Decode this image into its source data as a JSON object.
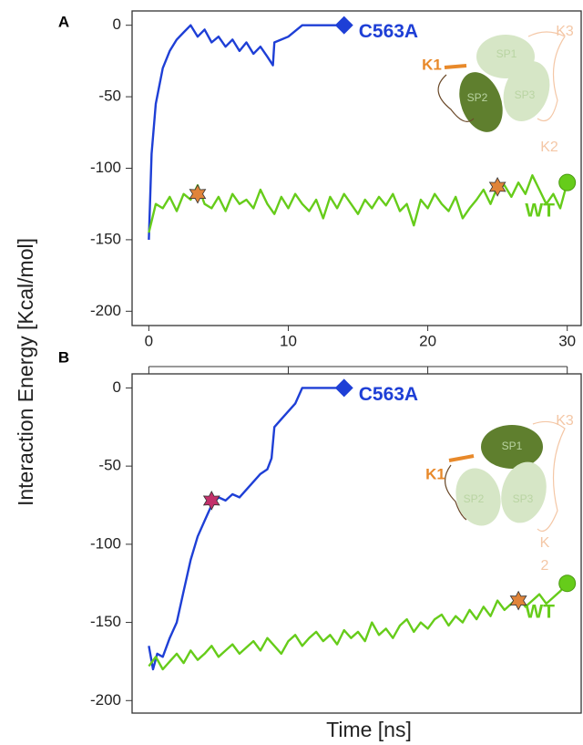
{
  "chart_data": [
    {
      "type": "line",
      "panel": "A",
      "ylabel": "Interaction Energy [Kcal/mol]",
      "xlim": [
        -1.2,
        31
      ],
      "xticks": [
        0,
        10,
        20,
        30
      ],
      "ylim": [
        -210,
        10
      ],
      "yticks": [
        -200,
        -150,
        -100,
        -50,
        0
      ],
      "series": [
        {
          "name": "C563A",
          "color": "#1e3fd6",
          "marker": "diamond",
          "x": [
            0,
            0.2,
            0.5,
            1,
            1.5,
            2,
            2.5,
            3,
            3.5,
            4,
            4.5,
            5,
            5.5,
            6,
            6.5,
            7,
            7.5,
            8,
            8.5,
            8.9,
            9,
            9.5,
            10,
            11,
            12,
            13,
            14
          ],
          "values": [
            -150,
            -90,
            -55,
            -30,
            -18,
            -10,
            -5,
            0,
            -8,
            -3,
            -12,
            -8,
            -15,
            -10,
            -18,
            -12,
            -20,
            -15,
            -22,
            -28,
            -12,
            -10,
            -8,
            0,
            0,
            0,
            0
          ]
        },
        {
          "name": "WT",
          "color": "#66cc1a",
          "marker": "circle",
          "x": [
            0,
            0.5,
            1,
            1.5,
            2,
            2.5,
            3,
            3.5,
            4,
            4.5,
            5,
            5.5,
            6,
            6.5,
            7,
            7.5,
            8,
            8.5,
            9,
            9.5,
            10,
            10.5,
            11,
            11.5,
            12,
            12.5,
            13,
            13.5,
            14,
            14.5,
            15,
            15.5,
            16,
            16.5,
            17,
            17.5,
            18,
            18.5,
            19,
            19.5,
            20,
            20.5,
            21,
            21.5,
            22,
            22.5,
            23,
            23.5,
            24,
            24.5,
            25,
            25.5,
            26,
            26.5,
            27,
            27.5,
            28,
            28.5,
            29,
            29.5,
            30
          ],
          "values": [
            -145,
            -125,
            -128,
            -120,
            -130,
            -118,
            -122,
            -112,
            -125,
            -128,
            -120,
            -130,
            -118,
            -125,
            -122,
            -128,
            -115,
            -125,
            -132,
            -120,
            -128,
            -118,
            -125,
            -130,
            -122,
            -135,
            -120,
            -128,
            -118,
            -125,
            -132,
            -122,
            -128,
            -120,
            -126,
            -118,
            -130,
            -125,
            -140,
            -122,
            -128,
            -118,
            -125,
            -130,
            -120,
            -135,
            -128,
            -122,
            -115,
            -125,
            -113,
            -112,
            -120,
            -110,
            -118,
            -105,
            -115,
            -125,
            -118,
            -128,
            -110
          ]
        }
      ],
      "stars": [
        {
          "x": 3.5,
          "y": -118,
          "color": "#e0843a"
        },
        {
          "x": 25,
          "y": -113,
          "color": "#e0843a"
        }
      ],
      "inset_labels": [
        "SP1",
        "SP2",
        "SP3",
        "K1",
        "K2",
        "K3"
      ]
    },
    {
      "type": "line",
      "panel": "B",
      "xlabel": "Time [ns]",
      "xlim": [
        -1.2,
        31
      ],
      "xticks": [
        0,
        10,
        20,
        30
      ],
      "ylim": [
        -208,
        9
      ],
      "yticks": [
        -200,
        -150,
        -100,
        -50,
        0
      ],
      "series": [
        {
          "name": "C563A",
          "color": "#1e3fd6",
          "marker": "diamond",
          "x": [
            0,
            0.3,
            0.6,
            1,
            1.5,
            2,
            2.5,
            3,
            3.5,
            4,
            4.5,
            5,
            5.5,
            6,
            6.5,
            7,
            7.5,
            8,
            8.5,
            8.8,
            9,
            9.5,
            10,
            10.5,
            11,
            12,
            13,
            14
          ],
          "values": [
            -165,
            -180,
            -170,
            -172,
            -160,
            -150,
            -130,
            -110,
            -95,
            -85,
            -75,
            -70,
            -72,
            -68,
            -70,
            -65,
            -60,
            -55,
            -52,
            -45,
            -25,
            -20,
            -15,
            -10,
            0,
            0,
            0,
            0
          ]
        },
        {
          "name": "WT",
          "color": "#66cc1a",
          "marker": "circle",
          "x": [
            0,
            0.5,
            1,
            1.5,
            2,
            2.5,
            3,
            3.5,
            4,
            4.5,
            5,
            5.5,
            6,
            6.5,
            7,
            7.5,
            8,
            8.5,
            9,
            9.5,
            10,
            10.5,
            11,
            11.5,
            12,
            12.5,
            13,
            13.5,
            14,
            14.5,
            15,
            15.5,
            16,
            16.5,
            17,
            17.5,
            18,
            18.5,
            19,
            19.5,
            20,
            20.5,
            21,
            21.5,
            22,
            22.5,
            23,
            23.5,
            24,
            24.5,
            25,
            25.5,
            26,
            26.5,
            27,
            27.5,
            28,
            28.5,
            29,
            29.5,
            30
          ],
          "values": [
            -178,
            -172,
            -180,
            -175,
            -170,
            -176,
            -168,
            -174,
            -170,
            -165,
            -172,
            -168,
            -164,
            -170,
            -166,
            -162,
            -168,
            -160,
            -165,
            -170,
            -162,
            -158,
            -165,
            -160,
            -156,
            -162,
            -158,
            -164,
            -155,
            -160,
            -156,
            -162,
            -150,
            -158,
            -154,
            -160,
            -152,
            -148,
            -156,
            -150,
            -154,
            -148,
            -145,
            -152,
            -146,
            -150,
            -142,
            -148,
            -140,
            -146,
            -136,
            -142,
            -138,
            -134,
            -140,
            -136,
            -132,
            -138,
            -134,
            -130,
            -125
          ]
        }
      ],
      "stars": [
        {
          "x": 4.5,
          "y": -72,
          "color": "#c2306a"
        },
        {
          "x": 26.5,
          "y": -136,
          "color": "#e0843a"
        }
      ],
      "inset_labels": [
        "SP1",
        "SP2",
        "SP3",
        "K1",
        "K",
        "2",
        "K3"
      ]
    }
  ]
}
